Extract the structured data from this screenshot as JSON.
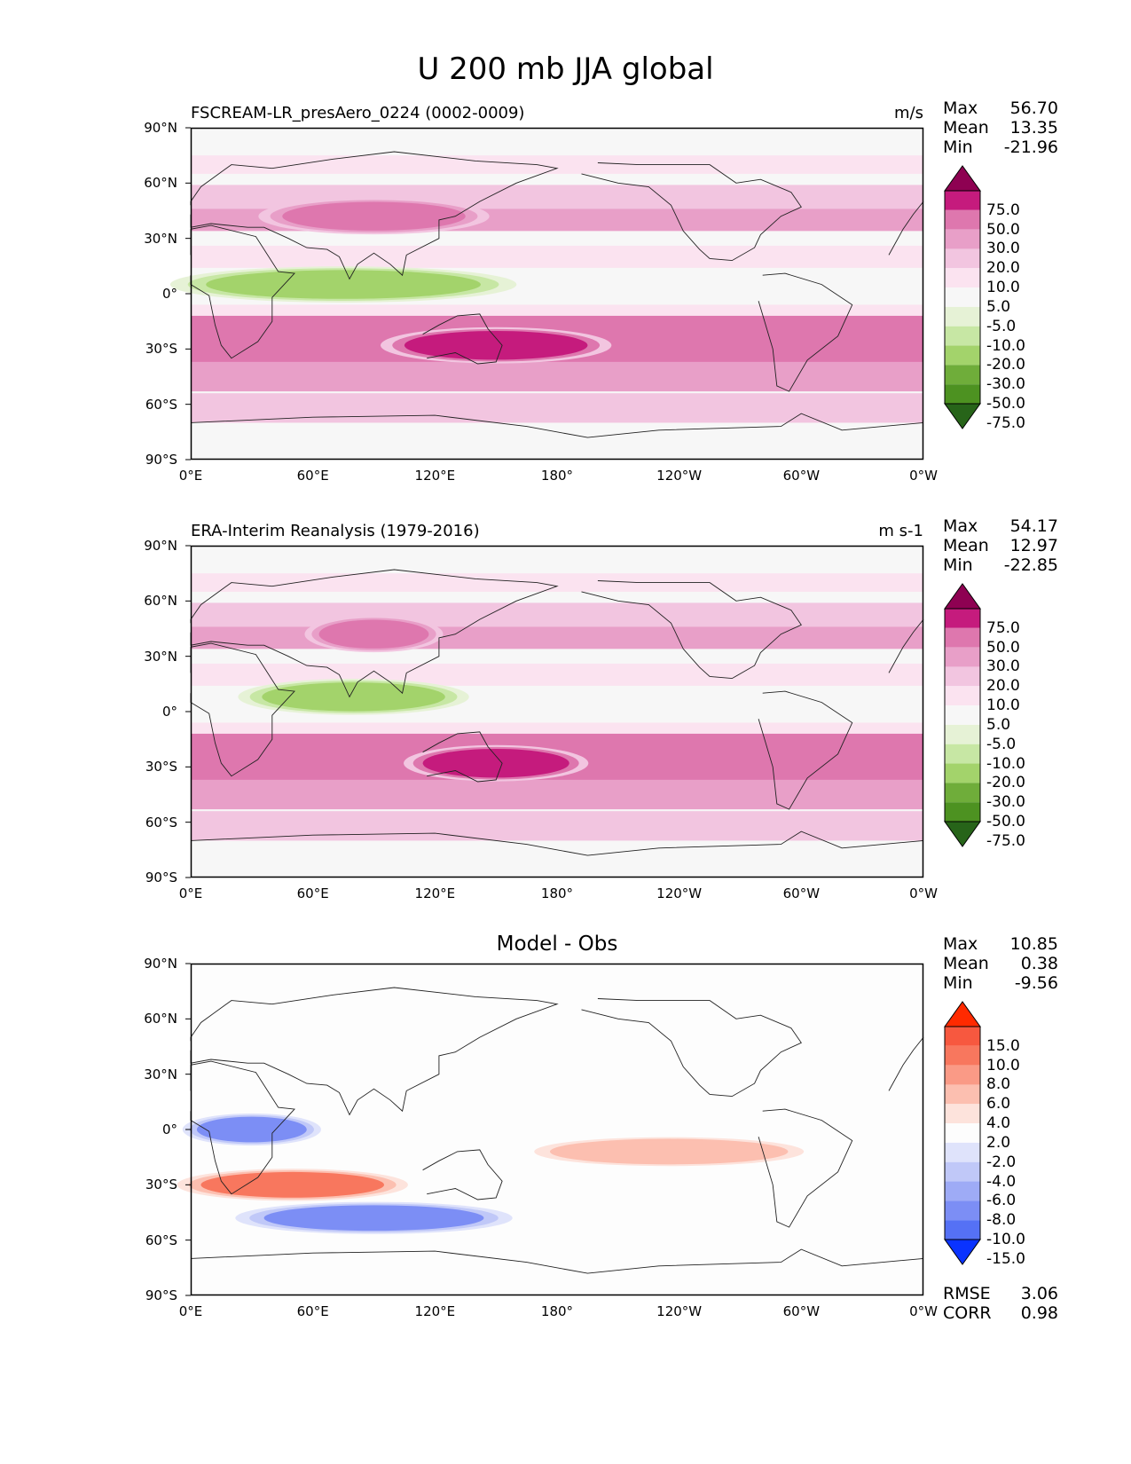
{
  "title": "U 200 mb JJA global",
  "panels": [
    {
      "label_left": "FSCREAM-LR_presAero_0224 (0002-0009)",
      "label_center": "",
      "units": "m/s",
      "stats": {
        "max_label": "Max",
        "max": "56.70",
        "mean_label": "Mean",
        "mean": "13.35",
        "min_label": "Min",
        "min": "-21.96"
      },
      "colorbar": {
        "levels": [
          "75.0",
          "50.0",
          "30.0",
          "20.0",
          "10.0",
          "5.0",
          "-5.0",
          "-10.0",
          "-20.0",
          "-30.0",
          "-50.0",
          "-75.0"
        ],
        "colors": [
          "#8e0152",
          "#c51b7d",
          "#de77ae",
          "#e89fc8",
          "#f2c5e0",
          "#fbe3f0",
          "#f7f7f7",
          "#e6f2d6",
          "#c7e7a4",
          "#a3d36b",
          "#6fad3a",
          "#4d9221",
          "#276419"
        ]
      }
    },
    {
      "label_left": "ERA-Interim Reanalysis (1979-2016)",
      "label_center": "",
      "units": "m s-1",
      "stats": {
        "max_label": "Max",
        "max": "54.17",
        "mean_label": "Mean",
        "mean": "12.97",
        "min_label": "Min",
        "min": "-22.85"
      },
      "colorbar": {
        "levels": [
          "75.0",
          "50.0",
          "30.0",
          "20.0",
          "10.0",
          "5.0",
          "-5.0",
          "-10.0",
          "-20.0",
          "-30.0",
          "-50.0",
          "-75.0"
        ],
        "colors": [
          "#8e0152",
          "#c51b7d",
          "#de77ae",
          "#e89fc8",
          "#f2c5e0",
          "#fbe3f0",
          "#f7f7f7",
          "#e6f2d6",
          "#c7e7a4",
          "#a3d36b",
          "#6fad3a",
          "#4d9221",
          "#276419"
        ]
      }
    },
    {
      "label_left": "",
      "label_center": "Model - Obs",
      "units": "",
      "stats": {
        "max_label": "Max",
        "max": "10.85",
        "mean_label": "Mean",
        "mean": "0.38",
        "min_label": "Min",
        "min": "-9.56"
      },
      "colorbar": {
        "levels": [
          "15.0",
          "10.0",
          "8.0",
          "6.0",
          "4.0",
          "2.0",
          "-2.0",
          "-4.0",
          "-6.0",
          "-8.0",
          "-10.0",
          "-15.0"
        ],
        "colors": [
          "#ff2a00",
          "#f7583f",
          "#f8775e",
          "#fa9a86",
          "#fcbfb0",
          "#fde3dc",
          "#fdfdfd",
          "#dfe3fb",
          "#c0c8f8",
          "#9eabf6",
          "#7c8ef5",
          "#5571f5",
          "#0a33ff"
        ]
      },
      "errors": {
        "rmse_label": "RMSE",
        "rmse": "3.06",
        "corr_label": "CORR",
        "corr": "0.98"
      }
    }
  ],
  "axes": {
    "y_ticks": [
      "90°N",
      "60°N",
      "30°N",
      "0°",
      "30°S",
      "60°S",
      "90°S"
    ],
    "x_ticks": [
      "0°E",
      "60°E",
      "120°E",
      "180°",
      "120°W",
      "60°W",
      "0°W"
    ]
  },
  "chart_data": [
    {
      "type": "heatmap",
      "title": "FSCREAM-LR_presAero_0224 (0002-0009)",
      "variable": "U 200 mb JJA",
      "units": "m/s",
      "xlim": [
        0,
        360
      ],
      "ylim": [
        -90,
        90
      ],
      "contour_levels": [
        -75,
        -50,
        -30,
        -20,
        -10,
        -5,
        5,
        10,
        20,
        30,
        50,
        75
      ],
      "colormap": "PiYG (pink positive, green negative)",
      "max": 56.7,
      "mean": 13.35,
      "min": -21.96,
      "features": [
        {
          "description": "Southern Hemisphere subtropical jet",
          "lat": -28,
          "lon_range": [
            100,
            200
          ],
          "approx_value": 55
        },
        {
          "description": "Northern mid-latitude jet",
          "lat": 42,
          "lon_range": [
            40,
            140
          ],
          "approx_value": 35
        },
        {
          "description": "Tropical easterlies over Indian Ocean / Africa",
          "lat": 5,
          "lon_range": [
            0,
            150
          ],
          "approx_value": -20
        }
      ]
    },
    {
      "type": "heatmap",
      "title": "ERA-Interim Reanalysis (1979-2016)",
      "variable": "U 200 mb JJA",
      "units": "m s-1",
      "xlim": [
        0,
        360
      ],
      "ylim": [
        -90,
        90
      ],
      "contour_levels": [
        -75,
        -50,
        -30,
        -20,
        -10,
        -5,
        5,
        10,
        20,
        30,
        50,
        75
      ],
      "colormap": "PiYG (pink positive, green negative)",
      "max": 54.17,
      "mean": 12.97,
      "min": -22.85,
      "features": [
        {
          "description": "Southern Hemisphere subtropical jet",
          "lat": -28,
          "lon_range": [
            110,
            190
          ],
          "approx_value": 53
        },
        {
          "description": "Northern mid-latitude jet",
          "lat": 42,
          "lon_range": [
            60,
            120
          ],
          "approx_value": 33
        },
        {
          "description": "Tropical easterlies over Indian Ocean",
          "lat": 8,
          "lon_range": [
            30,
            130
          ],
          "approx_value": -21
        }
      ]
    },
    {
      "type": "heatmap",
      "title": "Model - Obs",
      "variable": "U 200 mb JJA difference",
      "xlim": [
        0,
        360
      ],
      "ylim": [
        -90,
        90
      ],
      "contour_levels": [
        -15,
        -10,
        -8,
        -6,
        -4,
        -2,
        2,
        4,
        6,
        8,
        10,
        15
      ],
      "colormap": "bwr (red positive, blue negative)",
      "max": 10.85,
      "mean": 0.38,
      "min": -9.56,
      "rmse": 3.06,
      "corr": 0.98,
      "features": [
        {
          "description": "Positive bias south of Africa",
          "lat": -30,
          "lon_range": [
            0,
            100
          ],
          "approx_value": 9
        },
        {
          "description": "Negative bias Southern Ocean",
          "lat": -48,
          "lon_range": [
            30,
            150
          ],
          "approx_value": -8
        },
        {
          "description": "Negative bias equatorial Africa",
          "lat": 0,
          "lon_range": [
            0,
            60
          ],
          "approx_value": -8
        },
        {
          "description": "Positive bias tropical Pacific",
          "lat": -12,
          "lon_range": [
            170,
            300
          ],
          "approx_value": 6
        }
      ]
    }
  ]
}
